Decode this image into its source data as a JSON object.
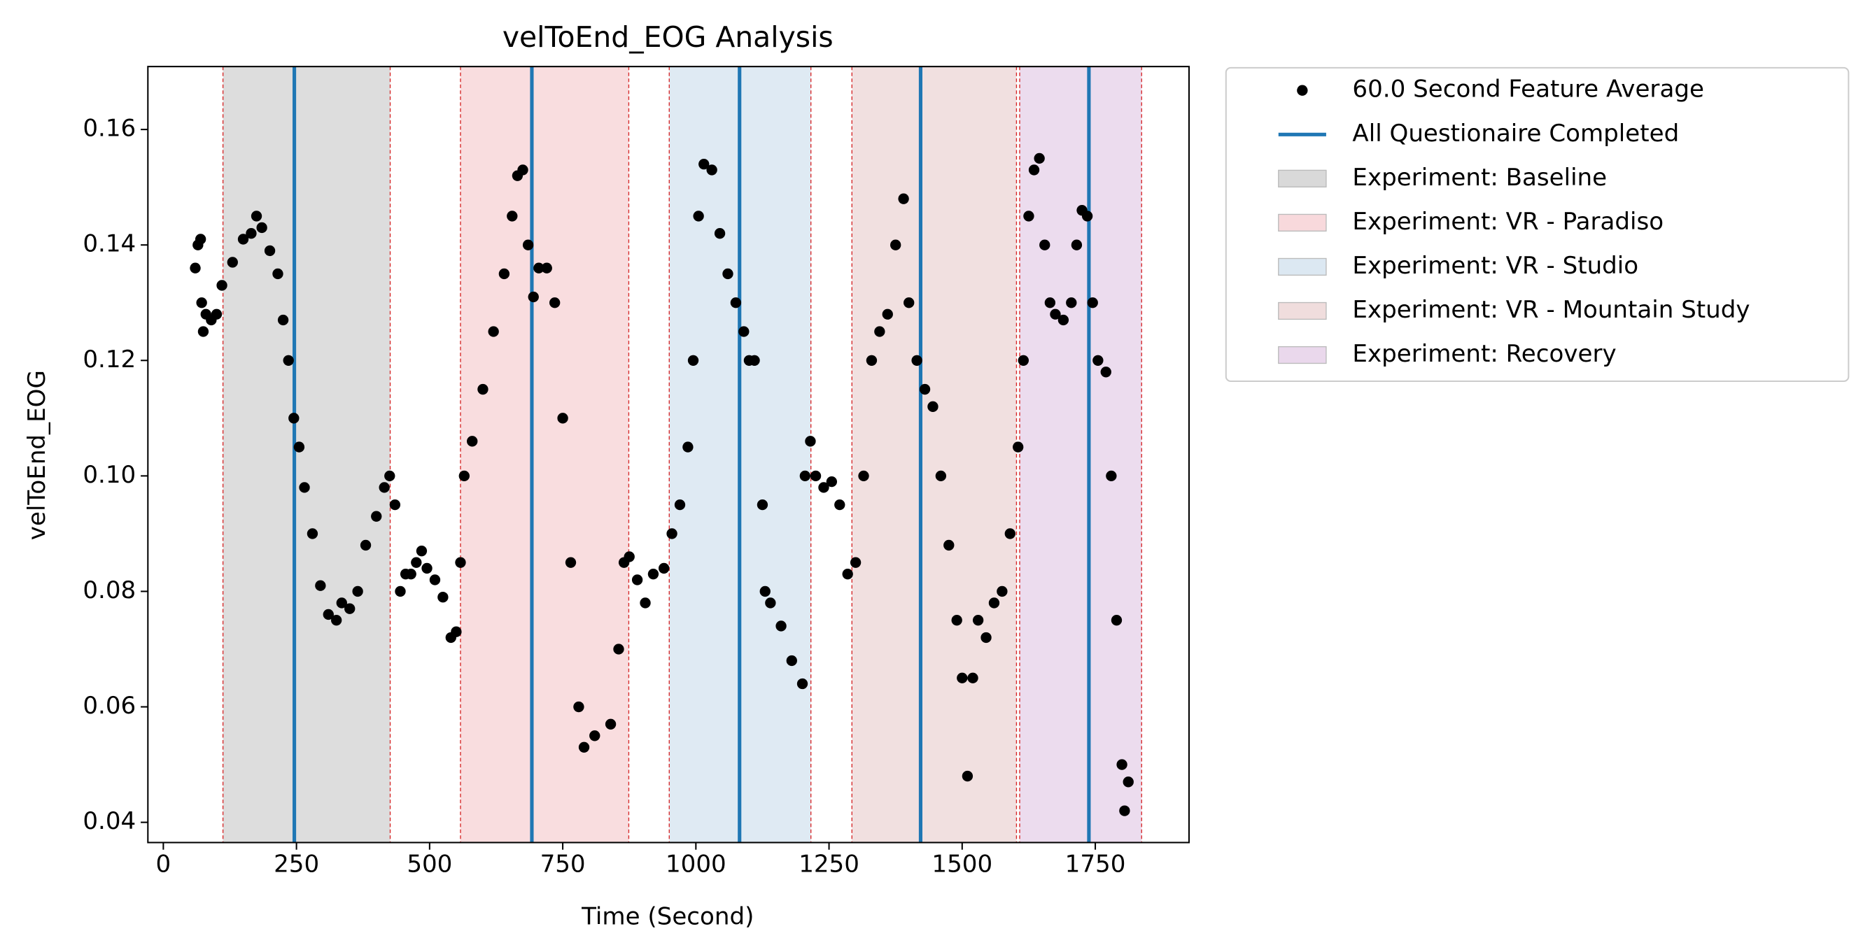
{
  "chart_data": {
    "type": "scatter",
    "title": "velToEnd_EOG Analysis",
    "xlabel": "Time (Second)",
    "ylabel": "velToEnd_EOG",
    "xlim": [
      -29,
      1926
    ],
    "ylim": [
      0.0365,
      0.1709
    ],
    "xticks": [
      0,
      250,
      500,
      750,
      1000,
      1250,
      1500,
      1750
    ],
    "yticks": [
      0.04,
      0.06,
      0.08,
      {
        "value": 0.1,
        "label": "0.10"
      },
      0.12,
      0.14,
      0.16
    ],
    "legend": "outside",
    "series": [
      {
        "name": "60.0 Second Feature Average",
        "color": "#000000",
        "x": [
          60,
          65,
          70,
          72,
          75,
          80,
          90,
          100,
          110,
          130,
          150,
          165,
          175,
          185,
          200,
          215,
          225,
          235,
          245,
          255,
          265,
          280,
          295,
          310,
          325,
          335,
          350,
          365,
          380,
          400,
          415,
          425,
          435,
          445,
          455,
          465,
          475,
          485,
          495,
          510,
          525,
          540,
          550,
          558,
          565,
          580,
          600,
          620,
          640,
          655,
          665,
          675,
          685,
          695,
          705,
          720,
          735,
          750,
          765,
          780,
          790,
          810,
          840,
          855,
          865,
          875,
          890,
          905,
          920,
          940,
          955,
          970,
          985,
          995,
          1005,
          1015,
          1030,
          1045,
          1060,
          1075,
          1090,
          1100,
          1110,
          1125,
          1130,
          1140,
          1160,
          1180,
          1200,
          1205,
          1215,
          1225,
          1240,
          1255,
          1270,
          1285,
          1300,
          1315,
          1330,
          1345,
          1360,
          1375,
          1390,
          1400,
          1415,
          1430,
          1445,
          1460,
          1475,
          1490,
          1500,
          1510,
          1520,
          1530,
          1545,
          1560,
          1575,
          1590,
          1605,
          1615,
          1625,
          1635,
          1645,
          1655,
          1665,
          1675,
          1690,
          1705,
          1715,
          1725,
          1735,
          1745,
          1755,
          1770,
          1780,
          1790,
          1800,
          1805,
          1812
        ],
        "values": [
          0.136,
          0.14,
          0.141,
          0.13,
          0.125,
          0.128,
          0.127,
          0.128,
          0.133,
          0.137,
          0.141,
          0.142,
          0.145,
          0.143,
          0.139,
          0.135,
          0.127,
          0.12,
          0.11,
          0.105,
          0.098,
          0.09,
          0.081,
          0.076,
          0.075,
          0.078,
          0.077,
          0.08,
          0.088,
          0.093,
          0.098,
          0.1,
          0.095,
          0.08,
          0.083,
          0.083,
          0.085,
          0.087,
          0.084,
          0.082,
          0.079,
          0.072,
          0.073,
          0.085,
          0.1,
          0.106,
          0.115,
          0.125,
          0.135,
          0.145,
          0.152,
          0.153,
          0.14,
          0.131,
          0.136,
          0.136,
          0.13,
          0.11,
          0.085,
          0.06,
          0.053,
          0.055,
          0.057,
          0.07,
          0.085,
          0.086,
          0.082,
          0.078,
          0.083,
          0.084,
          0.09,
          0.095,
          0.105,
          0.12,
          0.145,
          0.154,
          0.153,
          0.142,
          0.135,
          0.13,
          0.125,
          0.12,
          0.12,
          0.095,
          0.08,
          0.078,
          0.074,
          0.068,
          0.064,
          0.1,
          0.106,
          0.1,
          0.098,
          0.099,
          0.095,
          0.083,
          0.085,
          0.1,
          0.12,
          0.125,
          0.128,
          0.14,
          0.148,
          0.13,
          0.12,
          0.115,
          0.112,
          0.1,
          0.088,
          0.075,
          0.065,
          0.048,
          0.065,
          0.075,
          0.072,
          0.078,
          0.08,
          0.09,
          0.105,
          0.12,
          0.145,
          0.153,
          0.155,
          0.14,
          0.13,
          0.128,
          0.127,
          0.13,
          0.14,
          0.146,
          0.145,
          0.13,
          0.12,
          0.118,
          0.1,
          0.075,
          0.05,
          0.042,
          0.047
        ]
      }
    ],
    "vlines": {
      "name": "All Questionaire Completed",
      "color": "#1f77b4",
      "x": [
        246,
        692,
        1082,
        1422,
        1738
      ]
    },
    "span_edge_color": "#d62728",
    "spans": [
      {
        "name": "Experiment: Baseline",
        "color": "#d9d9d9",
        "start": 112,
        "end": 426
      },
      {
        "name": "Experiment: VR - Paradiso",
        "color": "#f8d9dc",
        "start": 558,
        "end": 874
      },
      {
        "name": "Experiment: VR - Studio",
        "color": "#dce8f2",
        "start": 950,
        "end": 1216
      },
      {
        "name": "Experiment: VR - Mountain Study",
        "color": "#f0dddd",
        "start": 1293,
        "end": 1602
      },
      {
        "name": "Experiment: Recovery",
        "color": "#ead8ec",
        "start": 1608,
        "end": 1837
      }
    ]
  }
}
